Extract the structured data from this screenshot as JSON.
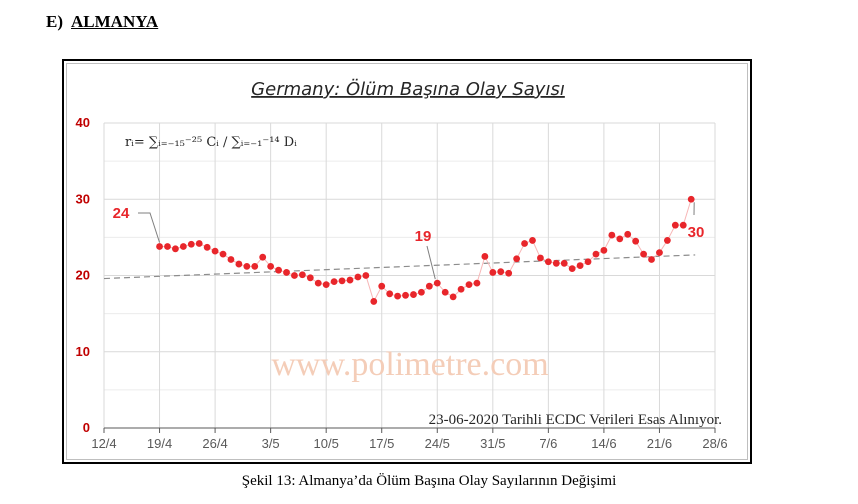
{
  "section": {
    "label": "E)",
    "title": "ALMANYA"
  },
  "chart_data": {
    "type": "line",
    "title": "Germany: Ölüm Başına Olay Sayısı",
    "formula": "rᵢ= ∑ᵢ₌₋₁₅⁻²⁵ Cᵢ / ∑ᵢ₌₋₁⁻¹⁴ Dᵢ",
    "watermark": "www.polimetre.com",
    "note": "23-06-2020 Tarihli ECDC Verileri Esas Alınıyor.",
    "x_ticks": [
      "12/4",
      "19/4",
      "26/4",
      "3/5",
      "10/5",
      "17/5",
      "24/5",
      "31/5",
      "7/6",
      "14/6",
      "21/6",
      "28/6"
    ],
    "y_ticks": [
      "0",
      "10",
      "20",
      "30",
      "40"
    ],
    "ylim": [
      0,
      40
    ],
    "grid": true,
    "x_start_label": "12/4",
    "series": [
      {
        "color": "#e8262b",
        "values": [
          23.8,
          23.8,
          23.5,
          23.8,
          24.1,
          24.2,
          23.7,
          23.2,
          22.8,
          22.1,
          21.5,
          21.2,
          21.2,
          22.4,
          21.2,
          20.7,
          20.4,
          20.0,
          20.1,
          19.7,
          19.0,
          18.8,
          19.2,
          19.3,
          19.4,
          19.8,
          20.0,
          16.6,
          18.6,
          17.6,
          17.3,
          17.4,
          17.5,
          17.8,
          18.6,
          19.0,
          17.8,
          17.2,
          18.2,
          18.8,
          19.0,
          22.5,
          20.4,
          20.5,
          20.3,
          22.2,
          24.2,
          24.6,
          22.3,
          21.8,
          21.6,
          21.6,
          20.9,
          21.3,
          21.8,
          22.8,
          23.3,
          25.3,
          24.8,
          25.4,
          24.5,
          22.8,
          22.1,
          23.0,
          24.6,
          26.6,
          26.6,
          30.0
        ]
      }
    ],
    "trend": {
      "start": 19.6,
      "end": 22.7,
      "color": "#8c8c8c"
    },
    "annotations": [
      {
        "label": "24",
        "color": "#e8262b"
      },
      {
        "label": "19",
        "color": "#e8262b"
      },
      {
        "label": "30",
        "color": "#e8262b"
      }
    ]
  },
  "caption": "Şekil 13: Almanya’da Ölüm Başına Olay Sayılarının Değişimi"
}
